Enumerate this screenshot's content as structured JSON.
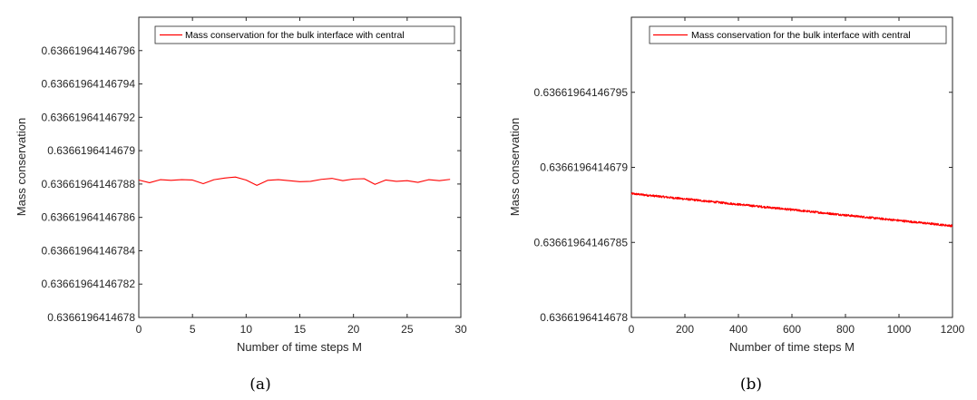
{
  "chart_data": [
    {
      "type": "line",
      "caption": "(a)",
      "xlabel": "Number of time steps M",
      "ylabel": "Mass conservation",
      "xlim": [
        0,
        30
      ],
      "ylim": [
        0,
        9
      ],
      "x_ticks": [
        "0",
        "5",
        "10",
        "15",
        "20",
        "25",
        "30"
      ],
      "x_tick_values": [
        0,
        5,
        10,
        15,
        20,
        25,
        30
      ],
      "y_ticks": [
        "0.6366196414678",
        "0.63661964146782",
        "0.63661964146784",
        "0.63661964146786",
        "0.63661964146788",
        "0.6366196414679",
        "0.63661964146792",
        "0.63661964146794",
        "0.63661964146796"
      ],
      "y_tick_values": [
        0,
        1,
        2,
        3,
        4,
        5,
        6,
        7,
        8
      ],
      "legend_position": "top-right",
      "series": [
        {
          "name": "Mass conservation for the bulk interface with central",
          "color": "#ff0000",
          "x": [
            0,
            1,
            2,
            3,
            4,
            5,
            6,
            7,
            8,
            9,
            10,
            11,
            12,
            13,
            14,
            15,
            16,
            17,
            18,
            19,
            20,
            21,
            22,
            23,
            24,
            25,
            26,
            27,
            28,
            29
          ],
          "y": [
            4.12,
            4.04,
            4.13,
            4.11,
            4.13,
            4.12,
            4.01,
            4.13,
            4.18,
            4.21,
            4.12,
            3.96,
            4.11,
            4.13,
            4.1,
            4.07,
            4.08,
            4.14,
            4.17,
            4.1,
            4.15,
            4.16,
            3.99,
            4.12,
            4.08,
            4.1,
            4.05,
            4.13,
            4.1,
            4.14
          ]
        }
      ]
    },
    {
      "type": "line",
      "caption": "(b)",
      "xlabel": "Number of time steps M",
      "ylabel": "Mass conservation",
      "xlim": [
        0,
        1200
      ],
      "ylim": [
        0,
        4
      ],
      "x_ticks": [
        "0",
        "200",
        "400",
        "600",
        "800",
        "1000",
        "1200"
      ],
      "x_tick_values": [
        0,
        200,
        400,
        600,
        800,
        1000,
        1200
      ],
      "y_ticks": [
        "0.6366196414678",
        "0.63661964146785",
        "0.6366196414679",
        "0.63661964146795"
      ],
      "y_tick_values": [
        0,
        1,
        2,
        3
      ],
      "legend_position": "top-right",
      "series": [
        {
          "name": "Mass conservation for the bulk interface with central",
          "color": "#ff0000",
          "trend": {
            "x0": 0,
            "y0": 1.65,
            "x1": 1200,
            "y1": 1.22
          },
          "noise": 0.014,
          "samples": 1201
        }
      ]
    }
  ]
}
